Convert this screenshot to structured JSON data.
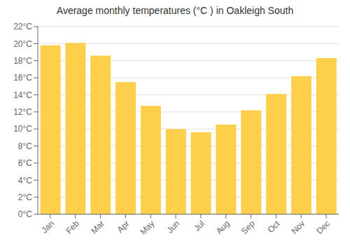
{
  "chart_data": {
    "type": "bar",
    "title": "Average monthly temperatures (°C ) in Oakleigh South",
    "categories": [
      "Jan",
      "Feb",
      "Mar",
      "Apr",
      "May",
      "Jun",
      "Jul",
      "Aug",
      "Sep",
      "Oct",
      "Nov",
      "Dec"
    ],
    "values": [
      19.8,
      20.1,
      18.6,
      15.5,
      12.7,
      10.0,
      9.6,
      10.5,
      12.2,
      14.1,
      16.2,
      18.3
    ],
    "color": "#FDCF4A",
    "ylim": [
      0,
      22
    ],
    "yticks": [
      {
        "value": 0,
        "label": "0°C"
      },
      {
        "value": 2,
        "label": "2°C"
      },
      {
        "value": 4,
        "label": "4°C"
      },
      {
        "value": 6,
        "label": "6°C"
      },
      {
        "value": 8,
        "label": "8°C"
      },
      {
        "value": 10,
        "label": "10°C"
      },
      {
        "value": 12,
        "label": "12°C"
      },
      {
        "value": 14,
        "label": "14°C"
      },
      {
        "value": 16,
        "label": "16°C"
      },
      {
        "value": 18,
        "label": "18°C"
      },
      {
        "value": 20,
        "label": "20°C"
      },
      {
        "value": 22,
        "label": "22°C"
      }
    ],
    "grid": true
  }
}
